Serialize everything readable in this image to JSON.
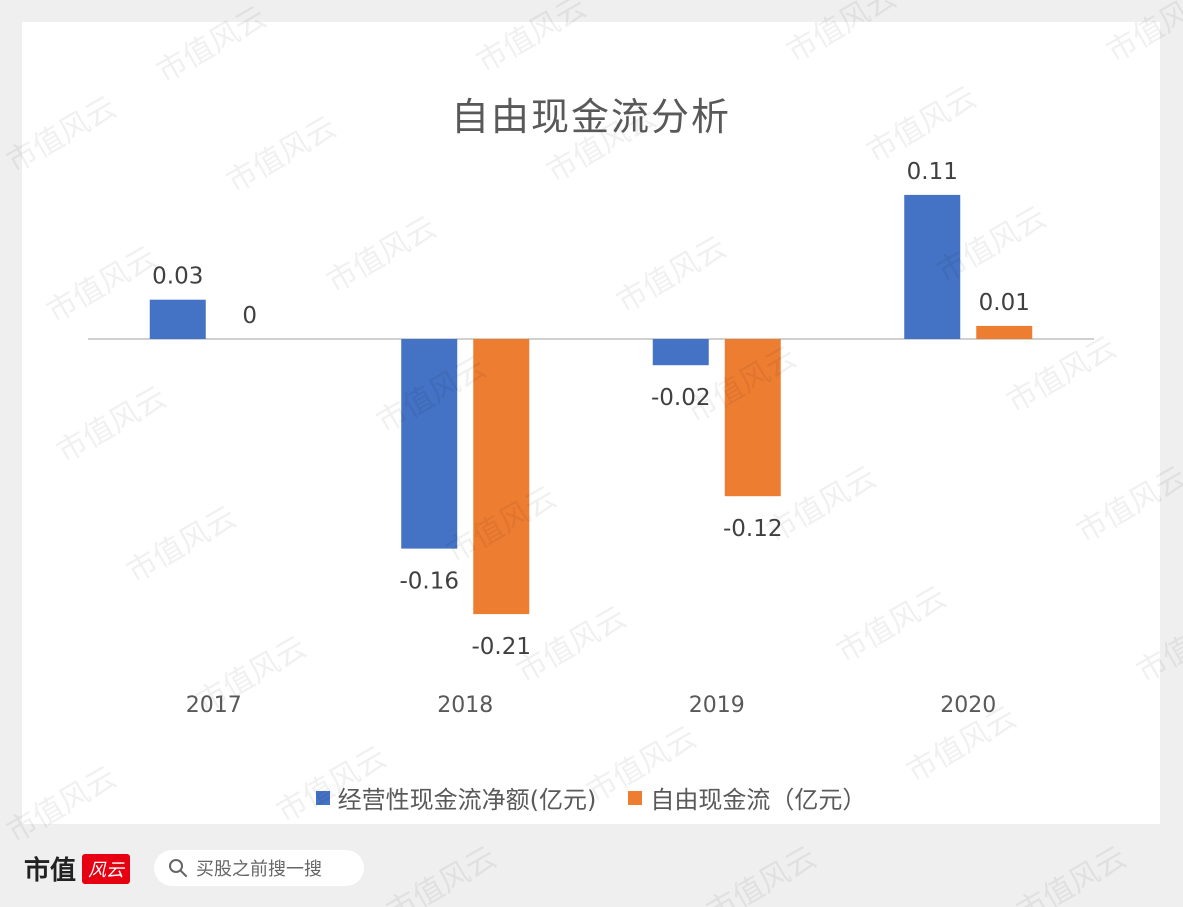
{
  "chart_data": {
    "type": "bar",
    "title": "自由现金流分析",
    "categories": [
      "2017",
      "2018",
      "2019",
      "2020"
    ],
    "series": [
      {
        "name": "经营性现金流净额(亿元)",
        "values": [
          0.03,
          -0.16,
          -0.02,
          0.11
        ],
        "labels": [
          "0.03",
          "-0.16",
          "-0.02",
          "0.11"
        ],
        "color": "#4472c4"
      },
      {
        "name": "自由现金流（亿元）",
        "values": [
          0,
          -0.21,
          -0.12,
          0.01
        ],
        "labels": [
          "0",
          "-0.21",
          "-0.12",
          "0.01"
        ],
        "color": "#ed7d31"
      }
    ],
    "ylim": [
      -0.24,
      0.14
    ],
    "grid": false,
    "legend": "bottom"
  },
  "footer": {
    "brand": "市值",
    "logo_text": "风云",
    "search_placeholder": "买股之前搜一搜",
    "search_icon": "search-icon"
  },
  "watermark": "市值风云"
}
